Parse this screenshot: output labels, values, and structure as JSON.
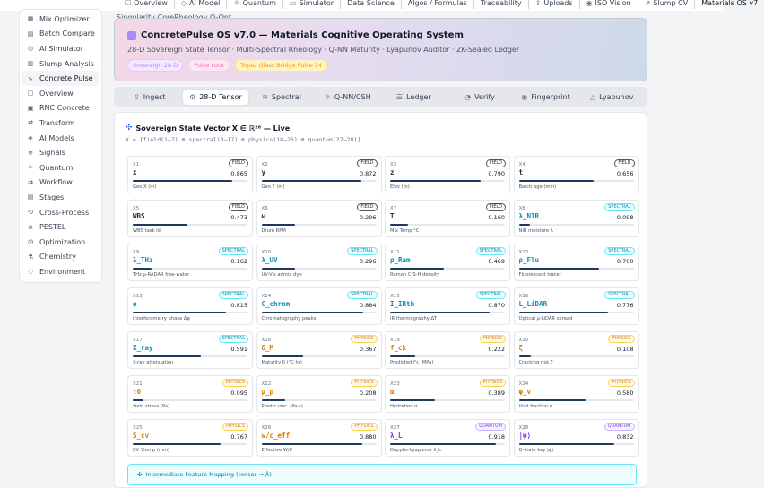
{
  "topnav": [
    {
      "label": "Overview",
      "icon": "☐"
    },
    {
      "label": "AI Model",
      "icon": "◇"
    },
    {
      "label": "Quantum",
      "icon": "⚛"
    },
    {
      "label": "Simulator",
      "icon": "▭"
    },
    {
      "label": "Data Science",
      "icon": ""
    },
    {
      "label": "Algos / Formulas",
      "icon": ""
    },
    {
      "label": "Traceability",
      "icon": ""
    },
    {
      "label": "Uploads",
      "icon": "⇪"
    },
    {
      "label": "ISO Vision",
      "icon": "◉"
    },
    {
      "label": "Slump CV",
      "icon": "↗"
    },
    {
      "label": "Materials OS v7",
      "icon": ""
    }
  ],
  "sidebar": [
    {
      "label": "Mix Optimizer",
      "icon": "▦"
    },
    {
      "label": "Batch Compare",
      "icon": "▤"
    },
    {
      "label": "AI Simulator",
      "icon": "◎"
    },
    {
      "label": "Slump Analysis",
      "icon": "▥"
    },
    {
      "label": "Concrete Pulse",
      "icon": "∿"
    },
    {
      "label": "Overview",
      "icon": "▢"
    },
    {
      "label": "RNC Concrete",
      "icon": "▣"
    },
    {
      "label": "Transform",
      "icon": "⇄"
    },
    {
      "label": "AI Models",
      "icon": "◈"
    },
    {
      "label": "Signals",
      "icon": "≋"
    },
    {
      "label": "Quantum",
      "icon": "⚛"
    },
    {
      "label": "Workflow",
      "icon": "⇉"
    },
    {
      "label": "Stages",
      "icon": "▤"
    },
    {
      "label": "Cross-Process",
      "icon": "⟲"
    },
    {
      "label": "PESTEL",
      "icon": "⊕"
    },
    {
      "label": "Optimization",
      "icon": "◷"
    },
    {
      "label": "Chemistry",
      "icon": "⚗"
    },
    {
      "label": "Environment",
      "icon": "◌"
    }
  ],
  "sub_title": "Singularity CoreRheology Q-Opt",
  "hero": {
    "title": "ConcretePulse OS v7.0 — Materials Cognitive Operating System",
    "desc": "28-D Sovereign State Tensor · Multi-Spectral Rheology · Q-NN Maturity · Lyapunov Auditor · ZK-Sealed Ledger",
    "pills": [
      "Sovereign 28-D",
      "Pulse Lock",
      "Topaz Glass Bridge Pulse 14"
    ]
  },
  "tabs": [
    {
      "label": "Ingest",
      "icon": "⇪"
    },
    {
      "label": "28-D Tensor",
      "icon": "⚙"
    },
    {
      "label": "Spectral",
      "icon": "≋"
    },
    {
      "label": "Q-NN/CSH",
      "icon": "⚛"
    },
    {
      "label": "Ledger",
      "icon": "☰"
    },
    {
      "label": "Verify",
      "icon": "◔"
    },
    {
      "label": "Fingerprint",
      "icon": "◉"
    },
    {
      "label": "Lyapunov",
      "icon": "△"
    }
  ],
  "panel": {
    "title": "Sovereign State Vector X ∈ ℝ²⁸ — Live",
    "formula": "X = [field(1–7) ⊕ spectral(8–17) ⊕ physics(18–26) ⊕ quantum(27–28)]",
    "mapping": "Intermediate Feature Mapping (tensor → Ä)"
  },
  "cells": [
    {
      "id": "X1",
      "badge": "FIELD",
      "kind": "field",
      "name": "x",
      "value": "0.865",
      "fill": 0.865,
      "desc": "Geo X (m)"
    },
    {
      "id": "X2",
      "badge": "FIELD",
      "kind": "field",
      "name": "y",
      "value": "0.872",
      "fill": 0.872,
      "desc": "Geo Y (m)"
    },
    {
      "id": "X3",
      "badge": "FIELD",
      "kind": "field",
      "name": "z",
      "value": "0.790",
      "fill": 0.79,
      "desc": "Elev (m)"
    },
    {
      "id": "X4",
      "badge": "FIELD",
      "kind": "field",
      "name": "t",
      "value": "0.656",
      "fill": 0.656,
      "desc": "Batch age (min)"
    },
    {
      "id": "X5",
      "badge": "FIELD",
      "kind": "field",
      "name": "WBS",
      "value": "0.473",
      "fill": 0.473,
      "desc": "WBS task id"
    },
    {
      "id": "X6",
      "badge": "FIELD",
      "kind": "field",
      "name": "ω",
      "value": "0.296",
      "fill": 0.296,
      "desc": "Drum RPM"
    },
    {
      "id": "X7",
      "badge": "FIELD",
      "kind": "field",
      "name": "T",
      "value": "0.160",
      "fill": 0.16,
      "desc": "Mix Temp °C"
    },
    {
      "id": "X8",
      "badge": "SPECTRAL",
      "kind": "spectral",
      "name": "λ_NIR",
      "value": "0.098",
      "fill": 0.098,
      "desc": "NIR moisture λ"
    },
    {
      "id": "X9",
      "badge": "SPECTRAL",
      "kind": "spectral",
      "name": "λ_THz",
      "value": "0.162",
      "fill": 0.162,
      "desc": "THz μ-RADAR free-water"
    },
    {
      "id": "X10",
      "badge": "SPECTRAL",
      "kind": "spectral",
      "name": "λ_UV",
      "value": "0.296",
      "fill": 0.296,
      "desc": "UV-Vis admix dye"
    },
    {
      "id": "X11",
      "badge": "SPECTRAL",
      "kind": "spectral",
      "name": "ρ_Ram",
      "value": "0.469",
      "fill": 0.469,
      "desc": "Raman C-S-H density"
    },
    {
      "id": "X12",
      "badge": "SPECTRAL",
      "kind": "spectral",
      "name": "ρ_Flu",
      "value": "0.700",
      "fill": 0.7,
      "desc": "Fluorescent tracer"
    },
    {
      "id": "X13",
      "badge": "SPECTRAL",
      "kind": "spectral",
      "name": "φ",
      "value": "0.815",
      "fill": 0.815,
      "desc": "Interferometry phase Δφ"
    },
    {
      "id": "X14",
      "badge": "SPECTRAL",
      "kind": "spectral",
      "name": "C_chrom",
      "value": "0.884",
      "fill": 0.884,
      "desc": "Chromatography peaks"
    },
    {
      "id": "X15",
      "badge": "SPECTRAL",
      "kind": "spectral",
      "name": "I_IRth",
      "value": "0.870",
      "fill": 0.87,
      "desc": "IR thermography ΔT"
    },
    {
      "id": "X16",
      "badge": "SPECTRAL",
      "kind": "spectral",
      "name": "L_LiDAR",
      "value": "0.776",
      "fill": 0.776,
      "desc": "Optical μ-LiDAR spread"
    },
    {
      "id": "X17",
      "badge": "SPECTRAL",
      "kind": "spectral",
      "name": "X_ray",
      "value": "0.591",
      "fill": 0.591,
      "desc": "X-ray attenuation"
    },
    {
      "id": "X18",
      "badge": "PHYSICS",
      "kind": "physics",
      "name": "δ_M",
      "value": "0.367",
      "fill": 0.367,
      "desc": "Maturity δ (°C·hr)"
    },
    {
      "id": "X19",
      "badge": "PHYSICS",
      "kind": "physics",
      "name": "f_ck",
      "value": "0.222",
      "fill": 0.222,
      "desc": "Predicted f'c (MPa)"
    },
    {
      "id": "X20",
      "badge": "PHYSICS",
      "kind": "physics",
      "name": "ζ",
      "value": "0.108",
      "fill": 0.108,
      "desc": "Cracking risk ζ"
    },
    {
      "id": "X21",
      "badge": "PHYSICS",
      "kind": "physics",
      "name": "τ0",
      "value": "0.095",
      "fill": 0.095,
      "desc": "Yield stress (Pa)"
    },
    {
      "id": "X22",
      "badge": "PHYSICS",
      "kind": "physics",
      "name": "μ_p",
      "value": "0.208",
      "fill": 0.208,
      "desc": "Plastic visc. (Pa·s)"
    },
    {
      "id": "X23",
      "badge": "PHYSICS",
      "kind": "physics",
      "name": "α",
      "value": "0.389",
      "fill": 0.389,
      "desc": "Hydration α"
    },
    {
      "id": "X24",
      "badge": "PHYSICS",
      "kind": "physics",
      "name": "φ_v",
      "value": "0.580",
      "fill": 0.58,
      "desc": "Void fraction ϕ"
    },
    {
      "id": "X25",
      "badge": "PHYSICS",
      "kind": "physics",
      "name": "S_cv",
      "value": "0.767",
      "fill": 0.767,
      "desc": "CV Slump (mm)"
    },
    {
      "id": "X26",
      "badge": "PHYSICS",
      "kind": "physics",
      "name": "w/c_eff",
      "value": "0.880",
      "fill": 0.88,
      "desc": "Effective W/C"
    },
    {
      "id": "X27",
      "badge": "QUANTUM",
      "kind": "quantum",
      "name": "λ_L",
      "value": "0.918",
      "fill": 0.918,
      "desc": "Doppler-Lyapunov λ_L"
    },
    {
      "id": "X28",
      "badge": "QUANTUM",
      "kind": "quantum",
      "name": "|ψ⟩",
      "value": "0.832",
      "fill": 0.832,
      "desc": "Q-state key |ψ⟩"
    }
  ]
}
